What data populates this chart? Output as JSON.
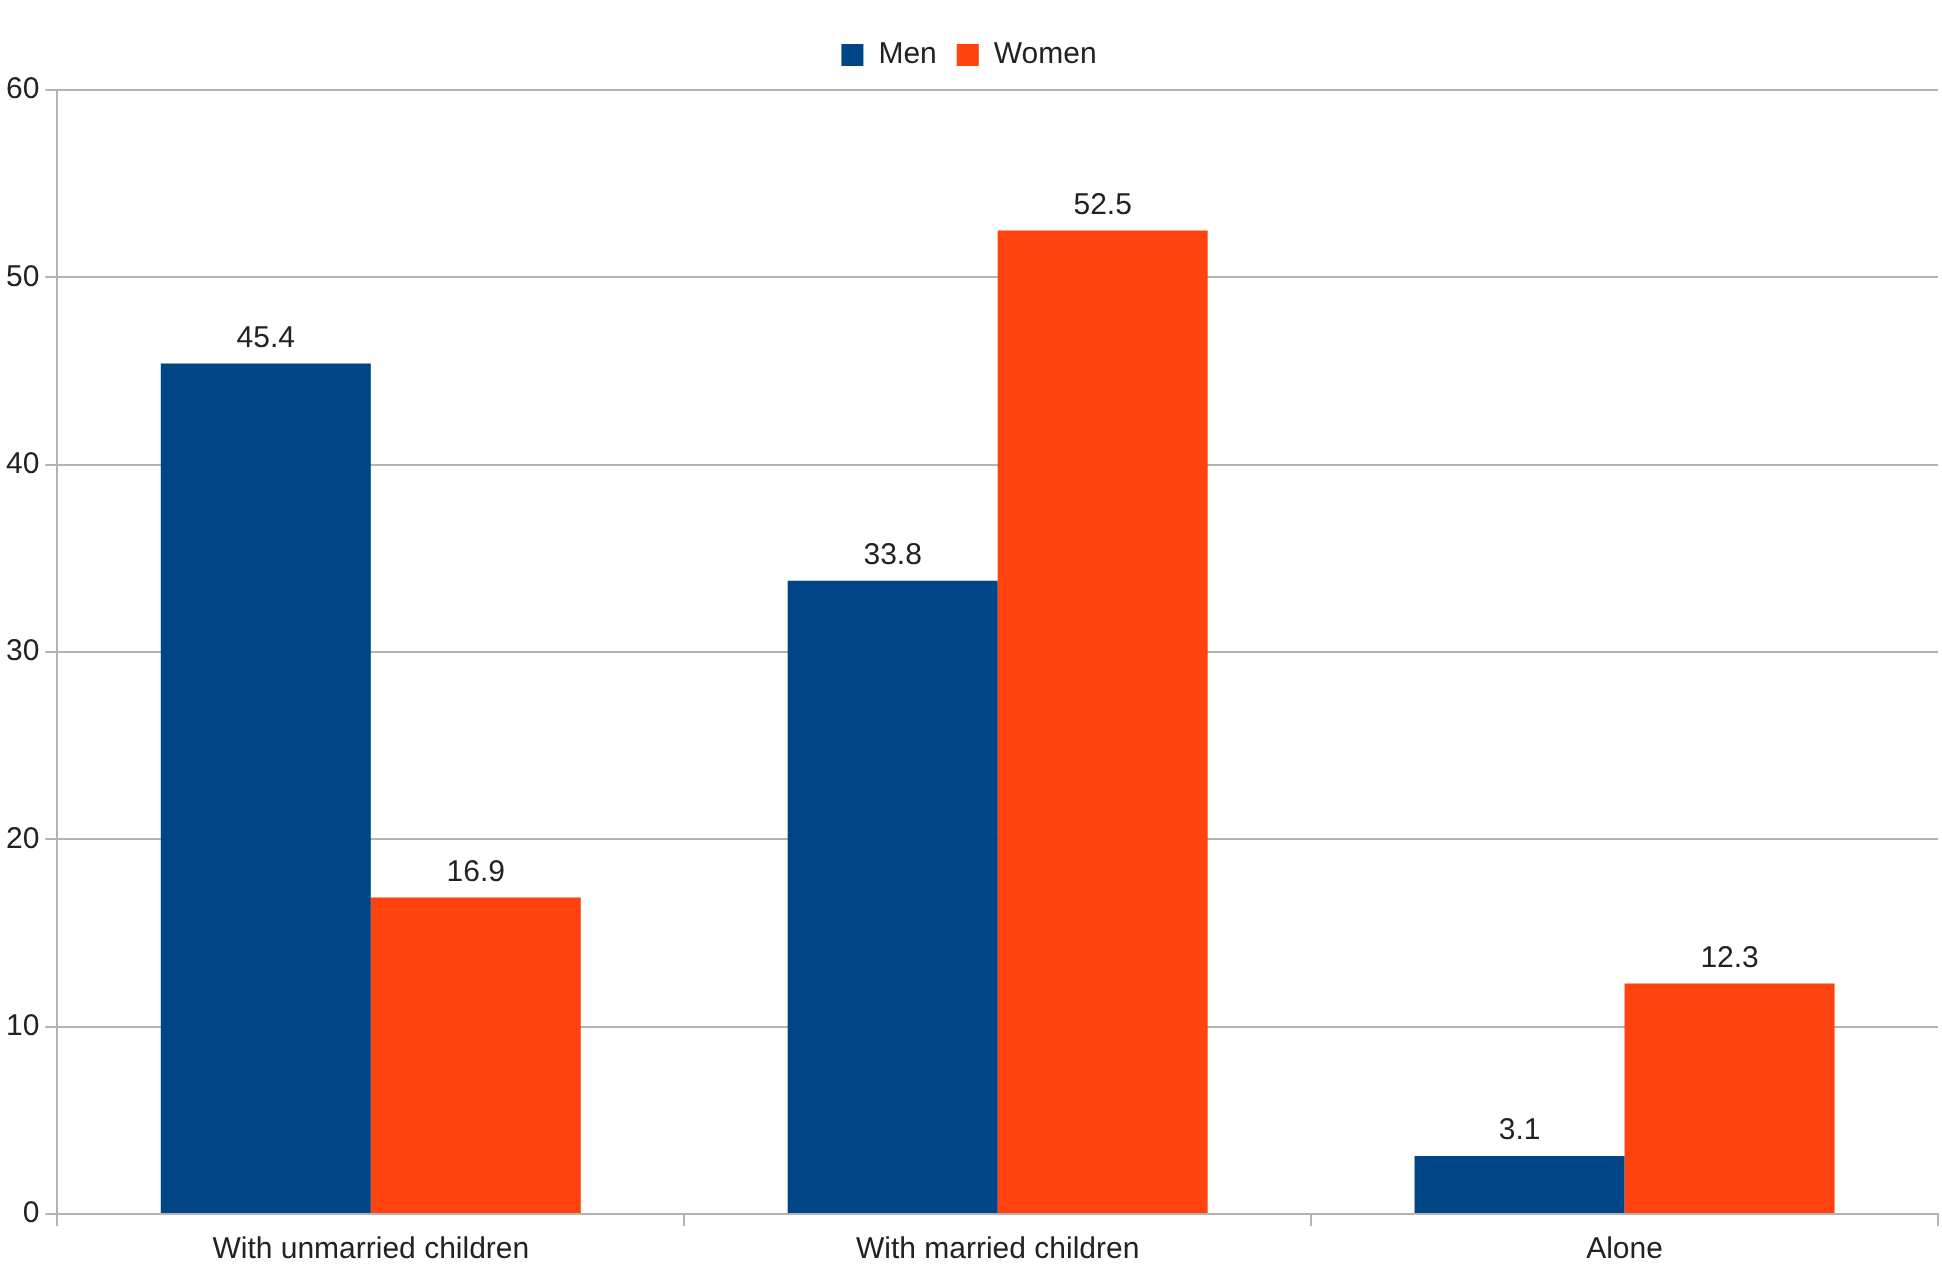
{
  "chart_data": {
    "type": "bar",
    "categories": [
      "With unmarried children",
      "With married children",
      "Alone"
    ],
    "series": [
      {
        "name": "Men",
        "color": "#004586",
        "values": [
          45.4,
          33.8,
          3.1
        ]
      },
      {
        "name": "Women",
        "color": "#ff420e",
        "values": [
          16.9,
          52.5,
          12.3
        ]
      }
    ],
    "ylim": [
      0,
      60
    ],
    "yticks": [
      0,
      10,
      20,
      30,
      40,
      50,
      60
    ],
    "grid": "y",
    "legend": "top",
    "data_labels": true
  }
}
